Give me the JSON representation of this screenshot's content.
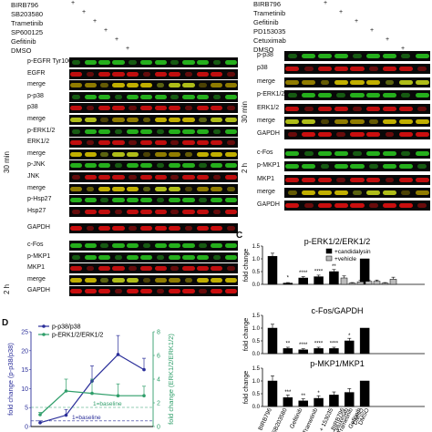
{
  "left_panel": {
    "treatments": [
      "BIRB796",
      "SB203580",
      "Trametinib",
      "SP600125",
      "Gefitinib",
      "DMSO"
    ],
    "rows": [
      "p-EGFR Tyr1068",
      "EGFR",
      "merge",
      "p-p38",
      "p38",
      "merge",
      "p-ERK1/2",
      "ERK1/2",
      "merge",
      "p-JNK",
      "JNK",
      "merge",
      "p-Hsp27",
      "Hsp27",
      "GAPDH",
      "c-Fos",
      "p-MKP1",
      "MKP1",
      "merge",
      "GAPDH"
    ],
    "time_labels": [
      "30 min",
      "2 h"
    ]
  },
  "right_panel": {
    "treatments": [
      "BIRB796",
      "Trametinib",
      "Gefitinib",
      "PD153035",
      "Cetuximab",
      "DMSO"
    ],
    "rows": [
      "p-p38",
      "p38",
      "merge",
      "p-ERK1/2",
      "ERK1/2",
      "merge",
      "GAPDH",
      "c-Fos",
      "p-MKP1",
      "MKP1",
      "merge",
      "GAPDH"
    ],
    "time_labels": [
      "30 min",
      "2 h"
    ]
  },
  "panel_c": {
    "label": "C",
    "ylabel": "fold change",
    "legend": [
      "+candidalysin",
      "+vehicle"
    ],
    "x_categories": [
      "BIRB796",
      "SB203580",
      "Gefitinib",
      "Trametinib",
      "+ 153035",
      "Cetuximab",
      "DMSO"
    ]
  },
  "panel_d": {
    "label": "D",
    "baseline_labels": [
      "1=baseline",
      "1=baseline"
    ]
  },
  "chart_data": [
    {
      "type": "bar",
      "title": "p-ERK1/2/ERK1/2",
      "ylabel": "fold change",
      "ylim": [
        0,
        1.5
      ],
      "yticks": [
        0.0,
        0.5,
        1.0,
        1.5
      ],
      "categories": [
        "BIRB796",
        "SB203580",
        "Gefitinib",
        "Trametinib",
        "+ 153035",
        "Cetuximab",
        "DMSO"
      ],
      "series": [
        {
          "name": "+candidalysin",
          "color": "#000000",
          "values": [
            1.1,
            0.05,
            0.25,
            0.3,
            0.5,
            0.0,
            1.0
          ],
          "errors": [
            0.12,
            0.02,
            0.05,
            0.06,
            0.08,
            0.0,
            0.0
          ]
        },
        {
          "name": "+vehicle",
          "color": "#bbbbbb",
          "values": [
            0.25,
            0.05,
            0.1,
            0.12,
            0.12,
            0.05,
            0.2
          ],
          "errors": [
            0.08,
            0.02,
            0.05,
            0.05,
            0.05,
            0.02,
            0.08
          ]
        }
      ],
      "annotations": [
        "*",
        "****",
        "****",
        "**"
      ]
    },
    {
      "type": "bar",
      "title": "c-Fos/GAPDH",
      "ylabel": "fold change",
      "ylim": [
        0,
        1.5
      ],
      "yticks": [
        0.0,
        0.5,
        1.0,
        1.5
      ],
      "categories": [
        "BIRB796",
        "SB203580",
        "Gefitinib",
        "Trametinib",
        "+ 153035",
        "Cetuximab",
        "DMSO"
      ],
      "series": [
        {
          "name": "+candidalysin",
          "color": "#000000",
          "values": [
            1.0,
            0.2,
            0.15,
            0.2,
            0.2,
            0.5,
            1.0
          ],
          "errors": [
            0.15,
            0.05,
            0.04,
            0.05,
            0.05,
            0.1,
            0.0
          ]
        }
      ],
      "annotations": [
        "**",
        "****",
        "****",
        "****",
        "*"
      ]
    },
    {
      "type": "bar",
      "title": "p-MKP1/MKP1",
      "ylabel": "fold change",
      "ylim": [
        0,
        1.5
      ],
      "yticks": [
        0.0,
        0.5,
        1.0,
        1.5
      ],
      "categories": [
        "BIRB796",
        "SB203580",
        "Gefitinib",
        "Trametinib",
        "+ 153035",
        "Cetuximab",
        "DMSO"
      ],
      "series": [
        {
          "name": "+candidalysin",
          "color": "#000000",
          "values": [
            1.0,
            0.35,
            0.22,
            0.32,
            0.45,
            0.55,
            1.0
          ],
          "errors": [
            0.2,
            0.1,
            0.08,
            0.1,
            0.12,
            0.15,
            0.0
          ]
        }
      ],
      "annotations": [
        "***",
        "**",
        "*"
      ]
    },
    {
      "type": "line",
      "title": "",
      "ylabel": "fold change (p-p38/p38)",
      "y2label": "fold change (ERK1/2/ERK1/2)",
      "ylim": [
        0,
        25
      ],
      "yticks": [
        0,
        5,
        10,
        15,
        20,
        25
      ],
      "y2lim": [
        0,
        8
      ],
      "y2ticks": [
        0,
        2,
        4,
        6,
        8
      ],
      "x": [
        0,
        1,
        2,
        3,
        4
      ],
      "series": [
        {
          "name": "p-p38/p38",
          "color": "#2b2f9a",
          "axis": "left",
          "values": [
            1,
            3,
            12,
            19,
            15
          ],
          "errors": [
            0.5,
            1.5,
            4,
            5,
            3
          ]
        },
        {
          "name": "p-ERK1/2/ERK1/2",
          "color": "#2f9e6a",
          "axis": "right",
          "values": [
            1,
            3,
            2.8,
            2.6,
            2.6
          ],
          "errors": [
            0.2,
            1.0,
            1.2,
            1.0,
            0.8
          ]
        }
      ]
    }
  ]
}
